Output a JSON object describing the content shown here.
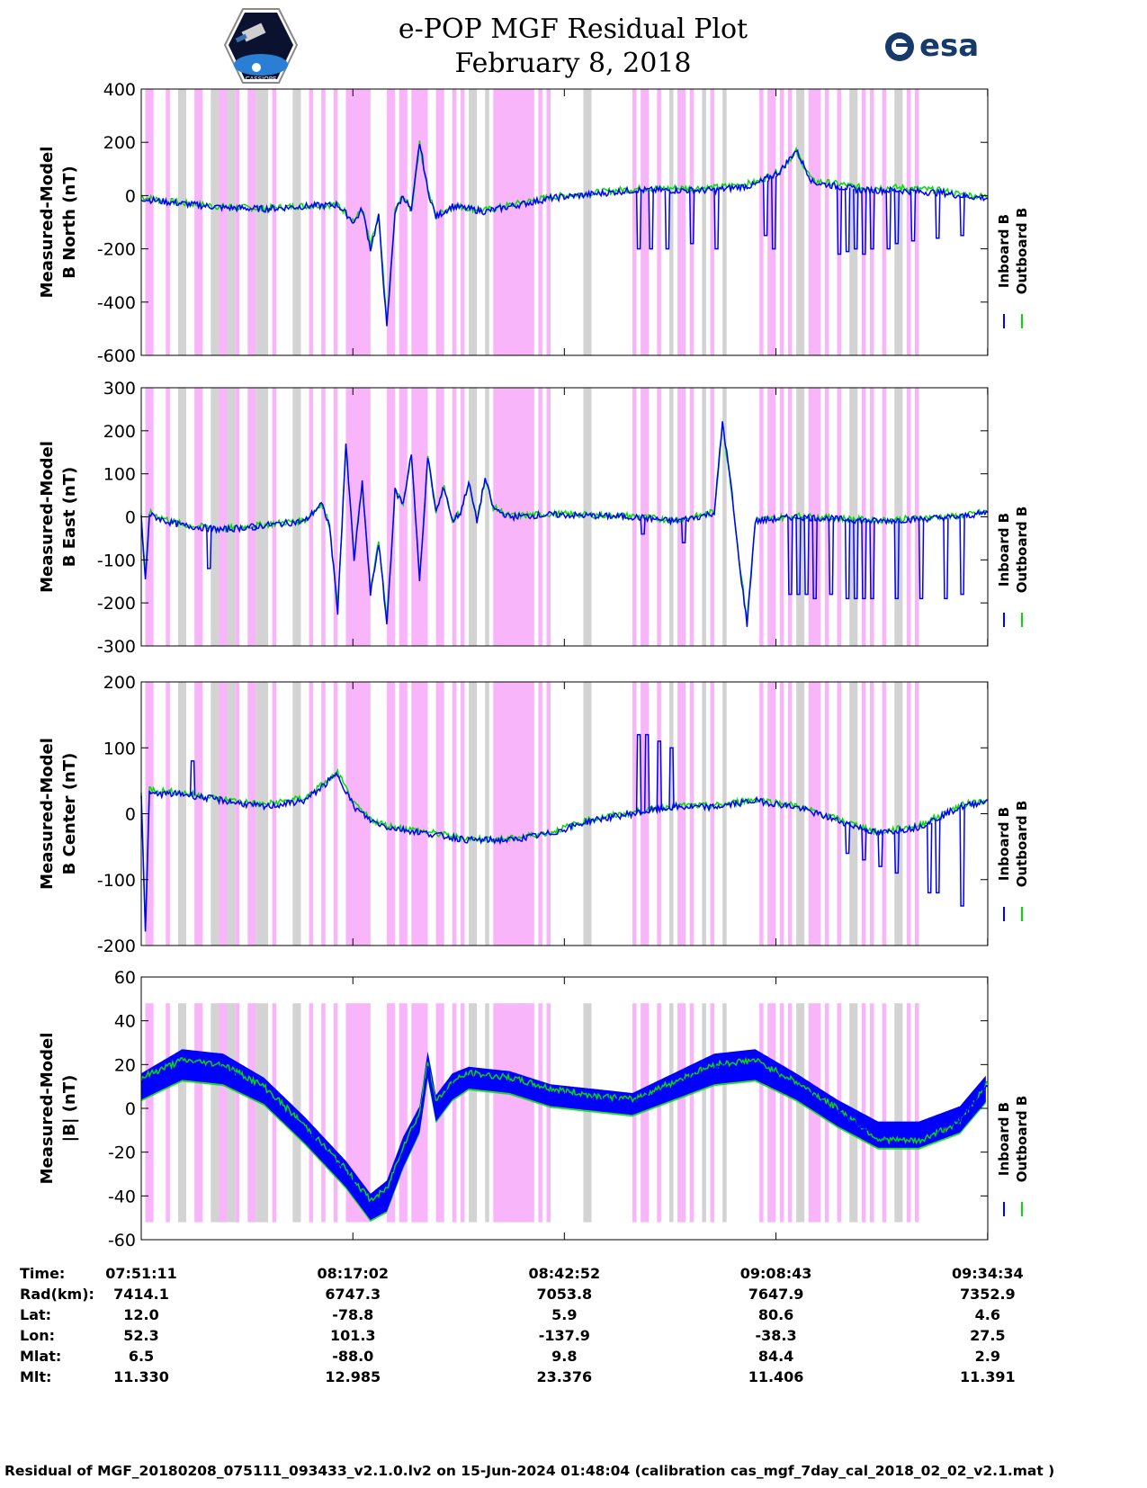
{
  "title_line1": "e-POP MGF Residual Plot",
  "title_line2": "February 8, 2018",
  "logo_left": "CASSIOPE",
  "logo_right": "esa",
  "colors": {
    "inboard": "#0000ff",
    "outboard": "#00dd00",
    "gray_band": "#d3d3d3",
    "magenta_band": "#f9b5f9"
  },
  "legend": {
    "inboard": "Inboard B",
    "outboard": "Outboard B"
  },
  "chart_data": [
    {
      "type": "line",
      "ylabel_line1": "Measured-Model",
      "ylabel_line2": "B North (nT)",
      "ylim": [
        -600,
        400
      ],
      "yticks": [
        "400",
        "200",
        "0",
        "-200",
        "-400",
        "-600"
      ],
      "x_minutes": [
        0,
        2,
        5,
        10,
        15,
        20,
        24,
        26,
        27,
        28,
        29,
        30,
        31,
        32,
        33,
        34,
        35,
        36,
        38,
        42,
        50,
        60,
        70,
        75,
        78,
        80,
        82,
        84,
        86,
        88,
        90,
        92,
        95,
        98,
        100,
        103.4
      ],
      "inboard": [
        -10,
        -20,
        -30,
        -45,
        -50,
        -40,
        -35,
        -100,
        -50,
        -200,
        -80,
        -500,
        -60,
        0,
        -60,
        200,
        20,
        -80,
        -40,
        -60,
        -10,
        20,
        20,
        40,
        90,
        170,
        50,
        40,
        30,
        20,
        20,
        20,
        15,
        10,
        0,
        -10
      ],
      "outboard": [
        -5,
        -15,
        -28,
        -42,
        -48,
        -38,
        -33,
        -95,
        -48,
        -190,
        -75,
        -480,
        -58,
        2,
        -58,
        195,
        22,
        -78,
        -38,
        -55,
        -5,
        25,
        30,
        48,
        95,
        165,
        55,
        48,
        40,
        30,
        30,
        30,
        25,
        18,
        5,
        -5
      ],
      "dips": [
        [
          60.5,
          -200
        ],
        [
          62,
          -200
        ],
        [
          64,
          -200
        ],
        [
          67,
          -180
        ],
        [
          70,
          -200
        ],
        [
          76,
          -150
        ],
        [
          77,
          -200
        ],
        [
          85,
          -220
        ],
        [
          86,
          -210
        ],
        [
          87,
          -200
        ],
        [
          88,
          -220
        ],
        [
          89,
          -200
        ],
        [
          91,
          -200
        ],
        [
          92,
          -180
        ],
        [
          94,
          -170
        ],
        [
          97,
          -160
        ],
        [
          100,
          -150
        ]
      ]
    },
    {
      "type": "line",
      "ylabel_line1": "Measured-Model",
      "ylabel_line2": "B East (nT)",
      "ylim": [
        -300,
        300
      ],
      "yticks": [
        "300",
        "200",
        "100",
        "0",
        "-100",
        "-200",
        "-300"
      ],
      "x_minutes": [
        0,
        0.5,
        1,
        3,
        5,
        10,
        15,
        20,
        21,
        22,
        23,
        24,
        25,
        26,
        27,
        28,
        29,
        30,
        31,
        32,
        33,
        34,
        35,
        36,
        37,
        38,
        39,
        40,
        41,
        42,
        43,
        44,
        45,
        50,
        60,
        65,
        68,
        70,
        71,
        72,
        73,
        74,
        75,
        80,
        90,
        100,
        103.4
      ],
      "inboard": [
        0,
        -150,
        5,
        -10,
        -20,
        -30,
        -20,
        -10,
        10,
        30,
        -20,
        -220,
        170,
        -100,
        80,
        -180,
        -60,
        -250,
        60,
        30,
        150,
        -150,
        140,
        10,
        70,
        -10,
        10,
        80,
        -10,
        90,
        20,
        10,
        0,
        5,
        0,
        -10,
        0,
        10,
        220,
        80,
        -100,
        -250,
        -10,
        0,
        -10,
        0,
        10
      ],
      "outboard": [
        5,
        -140,
        10,
        -5,
        -18,
        -28,
        -18,
        -8,
        12,
        32,
        -18,
        -210,
        165,
        -95,
        82,
        -175,
        -58,
        -240,
        62,
        32,
        148,
        -145,
        138,
        12,
        72,
        -8,
        12,
        78,
        -8,
        88,
        22,
        12,
        2,
        7,
        2,
        -8,
        2,
        12,
        215,
        78,
        -95,
        -240,
        -8,
        2,
        -8,
        2,
        12
      ],
      "dips": [
        [
          8,
          -120
        ],
        [
          13.5,
          -30
        ],
        [
          61,
          -40
        ],
        [
          66,
          -60
        ],
        [
          79,
          -180
        ],
        [
          80,
          -180
        ],
        [
          81,
          -180
        ],
        [
          82,
          -190
        ],
        [
          84,
          -180
        ],
        [
          86,
          -190
        ],
        [
          87,
          -190
        ],
        [
          88,
          -190
        ],
        [
          89,
          -190
        ],
        [
          92,
          -190
        ],
        [
          95,
          -190
        ],
        [
          98,
          -190
        ],
        [
          100,
          -180
        ]
      ]
    },
    {
      "type": "line",
      "ylabel_line1": "Measured-Model",
      "ylabel_line2": "B Center (nT)",
      "ylim": [
        -200,
        200
      ],
      "yticks": [
        "200",
        "100",
        "0",
        "-100",
        "-200"
      ],
      "x_minutes": [
        0,
        0.5,
        1,
        3,
        5,
        10,
        15,
        20,
        24,
        26,
        28,
        30,
        35,
        40,
        45,
        50,
        55,
        60,
        65,
        70,
        75,
        80,
        85,
        90,
        95,
        100,
        103.4
      ],
      "inboard": [
        30,
        -180,
        30,
        30,
        30,
        20,
        10,
        20,
        60,
        10,
        -10,
        -20,
        -30,
        -40,
        -40,
        -30,
        -10,
        0,
        10,
        10,
        20,
        10,
        -10,
        -30,
        -20,
        10,
        20
      ],
      "outboard": [
        35,
        -170,
        38,
        34,
        32,
        22,
        14,
        24,
        62,
        14,
        -8,
        -18,
        -28,
        -38,
        -38,
        -28,
        -8,
        2,
        12,
        12,
        22,
        12,
        -8,
        -28,
        -18,
        12,
        22
      ],
      "dips": [
        [
          6,
          80
        ],
        [
          60.5,
          120
        ],
        [
          61.5,
          120
        ],
        [
          63,
          110
        ],
        [
          64.5,
          100
        ],
        [
          86,
          -60
        ],
        [
          88,
          -70
        ],
        [
          90,
          -80
        ],
        [
          92,
          -90
        ],
        [
          96,
          -120
        ],
        [
          97,
          -120
        ],
        [
          100,
          -140
        ]
      ]
    },
    {
      "type": "line",
      "ylabel_line1": "Measured-Model",
      "ylabel_line2": "|B| (nT)",
      "ylim": [
        -60,
        60
      ],
      "yticks": [
        "60",
        "40",
        "20",
        "0",
        "-20",
        "-40",
        "-60"
      ],
      "x_minutes": [
        0,
        5,
        10,
        15,
        20,
        25,
        28,
        30,
        32,
        34,
        35,
        36,
        38,
        40,
        45,
        50,
        55,
        60,
        65,
        70,
        75,
        80,
        85,
        90,
        95,
        100,
        103.4
      ],
      "inboard": [
        10,
        20,
        18,
        8,
        -10,
        -30,
        -45,
        -40,
        -20,
        -5,
        20,
        0,
        10,
        14,
        12,
        6,
        4,
        2,
        10,
        18,
        20,
        10,
        -2,
        -12,
        -12,
        -5,
        10
      ],
      "outboard": [
        14,
        22,
        20,
        10,
        -8,
        -28,
        -42,
        -37,
        -17,
        -2,
        22,
        3,
        12,
        16,
        14,
        9,
        6,
        4,
        12,
        20,
        22,
        12,
        0,
        -14,
        -15,
        -6,
        12
      ],
      "band": [
        12,
        14,
        14,
        12,
        12,
        12,
        12,
        14,
        14,
        12,
        12,
        12,
        12,
        10,
        10,
        10,
        10,
        10,
        12,
        14,
        14,
        12,
        12,
        12,
        12,
        12,
        12
      ]
    }
  ],
  "time_axis": {
    "total_minutes": 103.4,
    "tick_minutes": [
      0,
      25.85,
      51.68,
      77.53,
      103.38
    ],
    "shaded_gray": [
      [
        4.5,
        5.5
      ],
      [
        8.5,
        9.5
      ],
      [
        10.5,
        11.5
      ],
      [
        14,
        15.5
      ],
      [
        18.5,
        19.5
      ],
      [
        40,
        41
      ],
      [
        42,
        42.5
      ],
      [
        46,
        47
      ],
      [
        54,
        55
      ],
      [
        64.5,
        65
      ],
      [
        68.5,
        69
      ],
      [
        71,
        71.5
      ],
      [
        80,
        81
      ],
      [
        86.5,
        87.5
      ],
      [
        92,
        93
      ]
    ],
    "shaded_magenta": [
      [
        0.5,
        1.5
      ],
      [
        3,
        3.5
      ],
      [
        6.5,
        7.5
      ],
      [
        9.5,
        10.5
      ],
      [
        11.5,
        12
      ],
      [
        13,
        14
      ],
      [
        16,
        16.5
      ],
      [
        20.5,
        21
      ],
      [
        22,
        22.5
      ],
      [
        23.5,
        24
      ],
      [
        25,
        28
      ],
      [
        30,
        31
      ],
      [
        31.5,
        32.5
      ],
      [
        33,
        35
      ],
      [
        36,
        37
      ],
      [
        38,
        38.5
      ],
      [
        39,
        39.5
      ],
      [
        43,
        48
      ],
      [
        48.5,
        49
      ],
      [
        49.5,
        50
      ],
      [
        60,
        60.5
      ],
      [
        61,
        62
      ],
      [
        63,
        63.5
      ],
      [
        65.5,
        66.5
      ],
      [
        67,
        67.5
      ],
      [
        69.5,
        70
      ],
      [
        75.5,
        76
      ],
      [
        76.5,
        77.5
      ],
      [
        78,
        78.5
      ],
      [
        79,
        79.5
      ],
      [
        81.5,
        83
      ],
      [
        83.5,
        84
      ],
      [
        85,
        85.5
      ],
      [
        88,
        88.5
      ],
      [
        89,
        89.5
      ],
      [
        90.5,
        91
      ],
      [
        93.5,
        94
      ],
      [
        94.5,
        95
      ]
    ]
  },
  "table": {
    "row_labels": [
      "Time:",
      "Rad(km):",
      "Lat:",
      "Lon:",
      "Mlat:",
      "Mlt:"
    ],
    "columns": [
      [
        "07:51:11",
        "7414.1",
        "12.0",
        "52.3",
        "6.5",
        "11.330"
      ],
      [
        "08:17:02",
        "6747.3",
        "-78.8",
        "101.3",
        "-88.0",
        "12.985"
      ],
      [
        "08:42:52",
        "7053.8",
        "5.9",
        "-137.9",
        "9.8",
        "23.376"
      ],
      [
        "09:08:43",
        "7647.9",
        "80.6",
        "-38.3",
        "84.4",
        "11.406"
      ],
      [
        "09:34:34",
        "7352.9",
        "4.6",
        "27.5",
        "2.9",
        "11.391"
      ]
    ]
  },
  "footer": "Residual of MGF_20180208_075111_093433_v2.1.0.lv2 on 15-Jun-2024 01:48:04 (calibration cas_mgf_7day_cal_2018_02_02_v2.1.mat )"
}
